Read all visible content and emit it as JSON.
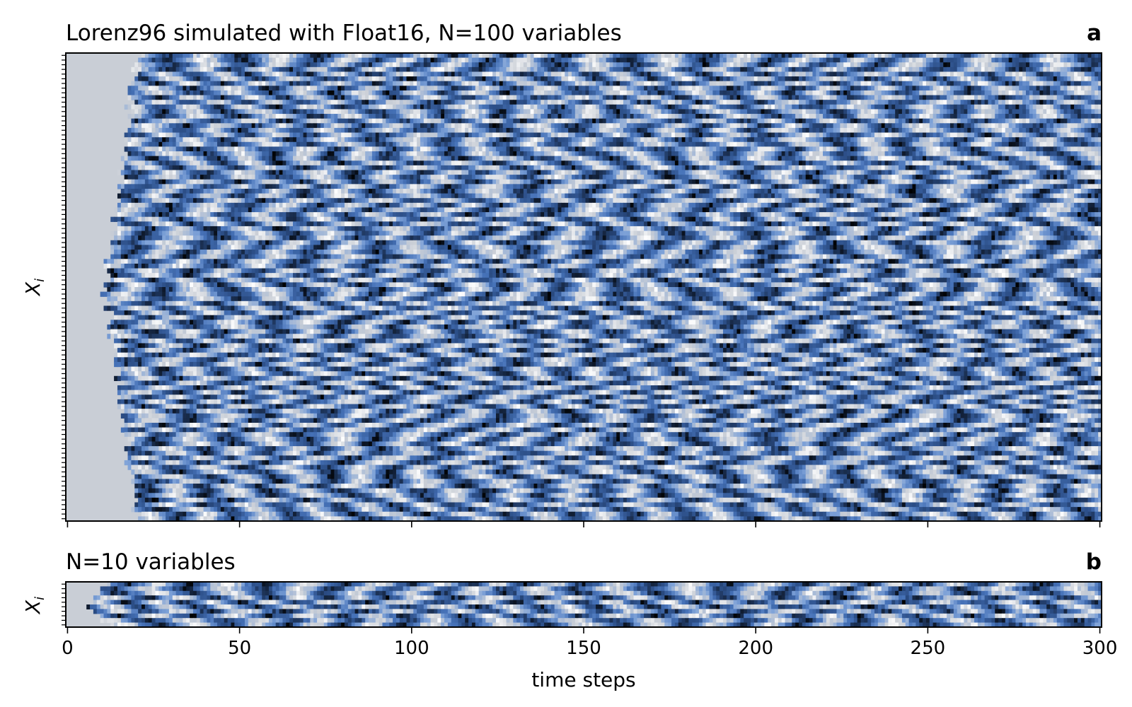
{
  "chart_data": [
    {
      "type": "heatmap",
      "title": "Lorenz96 simulated with Float16, N=100 variables",
      "panel_label": "a",
      "ylabel": "X_i",
      "ylabel_main": "X",
      "ylabel_sub": "i",
      "xlabel": "",
      "n_variables": 100,
      "n_steps": 301,
      "xlim": [
        0,
        300
      ],
      "x_ticks": [
        0,
        50,
        100,
        150,
        200,
        250,
        300
      ],
      "x_tick_labels_shown": false,
      "spinup_steps": 20,
      "colormap": [
        "#000000",
        "#2b4d85",
        "#4672b8",
        "#7ea2d8",
        "#c9ced6",
        "#ffffff"
      ]
    },
    {
      "type": "heatmap",
      "title": "N=10 variables",
      "panel_label": "b",
      "ylabel": "X_i",
      "ylabel_main": "X",
      "ylabel_sub": "i",
      "xlabel": "time steps",
      "n_variables": 10,
      "n_steps": 301,
      "xlim": [
        0,
        300
      ],
      "x_ticks": [
        0,
        50,
        100,
        150,
        200,
        250,
        300
      ],
      "x_tick_labels": [
        "0",
        "50",
        "100",
        "150",
        "200",
        "250",
        "300"
      ],
      "spinup_steps": 11,
      "colormap": [
        "#000000",
        "#2b4d85",
        "#4672b8",
        "#7ea2d8",
        "#c9ced6",
        "#ffffff"
      ]
    }
  ]
}
